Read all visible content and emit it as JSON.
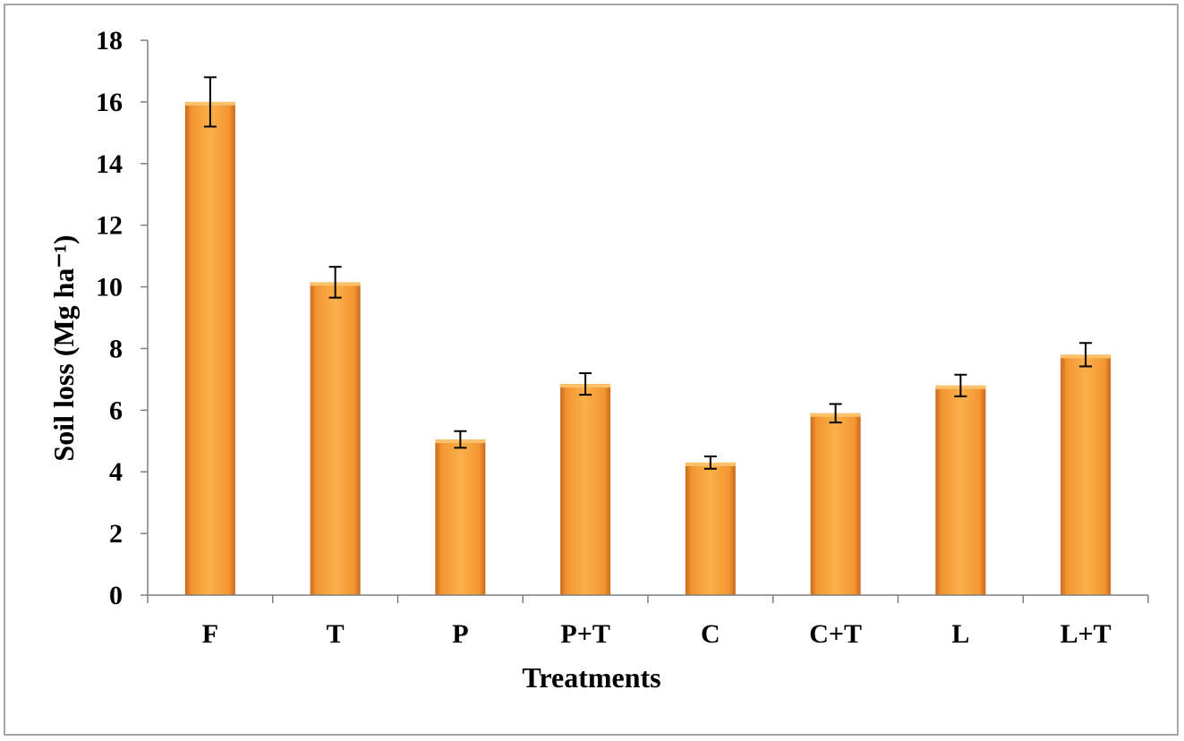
{
  "chart_data": {
    "type": "bar",
    "title": "",
    "xlabel": "Treatments",
    "ylabel": "Soil loss (Mg ha⁻¹)",
    "categories": [
      "F",
      "T",
      "P",
      "P+T",
      "C",
      "C+T",
      "L",
      "L+T"
    ],
    "series": [
      {
        "values": [
          16.0,
          10.15,
          5.05,
          6.85,
          4.3,
          5.9,
          6.8,
          7.8
        ],
        "error": [
          0.8,
          0.5,
          0.27,
          0.35,
          0.2,
          0.3,
          0.35,
          0.38
        ]
      }
    ],
    "ylim": [
      0,
      18
    ],
    "yticks": [
      0,
      2,
      4,
      6,
      8,
      10,
      12,
      14,
      16,
      18
    ],
    "grid": false,
    "legend": "none",
    "colors": {
      "bar_light": "#fbb04a",
      "bar_main": "#f39531",
      "bar_dark": "#c9681c",
      "axis": "#7f7f7f",
      "frame": "#a6a6a6"
    }
  }
}
